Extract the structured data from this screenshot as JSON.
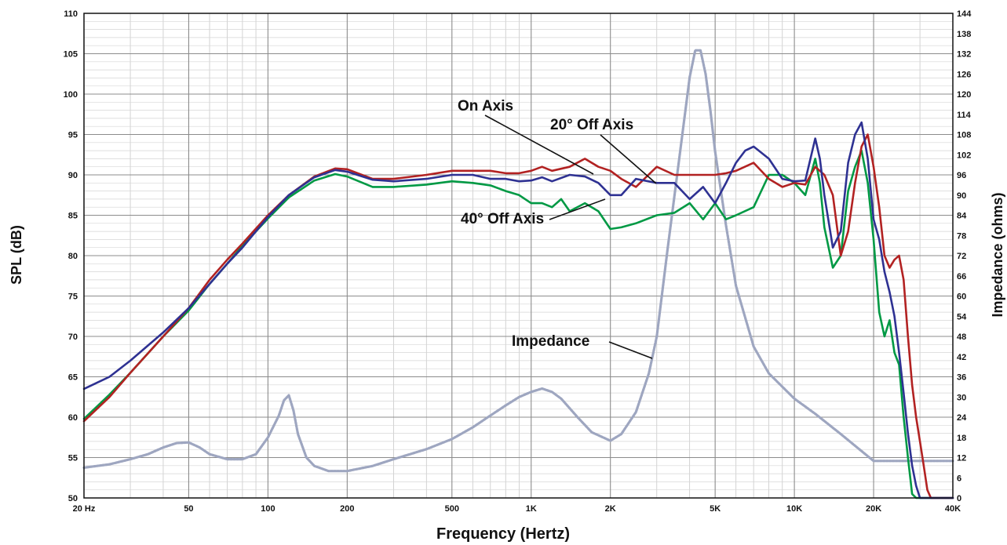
{
  "chart_data": {
    "type": "line",
    "xlabel": "Frequency (Hertz)",
    "ylabel": "SPL (dB)",
    "y2label": "Impedance (ohms)",
    "xscale": "log",
    "xlim": [
      20,
      40000
    ],
    "ylim": [
      50,
      110
    ],
    "y2lim": [
      0,
      144
    ],
    "grid": true,
    "x_ticks": [
      {
        "value": 20,
        "label": "20  Hz"
      },
      {
        "value": 50,
        "label": "50"
      },
      {
        "value": 100,
        "label": "100"
      },
      {
        "value": 200,
        "label": "200"
      },
      {
        "value": 500,
        "label": "500"
      },
      {
        "value": 1000,
        "label": "1K"
      },
      {
        "value": 2000,
        "label": "2K"
      },
      {
        "value": 5000,
        "label": "5K"
      },
      {
        "value": 10000,
        "label": "10K"
      },
      {
        "value": 20000,
        "label": "20K"
      },
      {
        "value": 40000,
        "label": "40K"
      }
    ],
    "y_ticks": [
      50,
      55,
      60,
      65,
      70,
      75,
      80,
      85,
      90,
      95,
      100,
      105,
      110
    ],
    "y2_ticks": [
      0,
      6,
      12,
      18,
      24,
      30,
      36,
      42,
      48,
      54,
      60,
      66,
      72,
      78,
      84,
      90,
      96,
      102,
      108,
      114,
      120,
      126,
      132,
      138,
      144
    ],
    "series": [
      {
        "name": "On Axis",
        "axis": "left",
        "color": "#b22222",
        "x": [
          20,
          25,
          30,
          40,
          50,
          60,
          70,
          80,
          100,
          120,
          150,
          180,
          200,
          250,
          300,
          400,
          500,
          600,
          700,
          800,
          900,
          1000,
          1100,
          1200,
          1400,
          1600,
          1800,
          2000,
          2200,
          2500,
          3000,
          3500,
          4000,
          4500,
          5000,
          5500,
          6000,
          7000,
          8000,
          9000,
          10000,
          11000,
          12000,
          13000,
          14000,
          15000,
          16000,
          17000,
          18000,
          19000,
          20000,
          21000,
          22000,
          23000,
          24000,
          25000,
          26000,
          27000,
          28000,
          29000,
          30000,
          31000,
          32000,
          33000,
          40000
        ],
        "y": [
          59.5,
          62.5,
          65.5,
          70,
          73.5,
          77,
          79.5,
          81.5,
          85,
          87.5,
          89.8,
          90.8,
          90.7,
          89.5,
          89.5,
          90,
          90.5,
          90.5,
          90.5,
          90.2,
          90.2,
          90.5,
          91,
          90.5,
          91,
          92,
          91,
          90.5,
          89.5,
          88.5,
          91,
          90,
          90,
          90,
          90,
          90.2,
          90.5,
          91.5,
          89.5,
          88.5,
          89,
          88.8,
          91,
          90,
          87.5,
          80,
          83,
          89,
          93.5,
          95,
          91,
          86,
          80,
          78.5,
          79.5,
          80,
          77,
          70,
          64,
          60,
          57,
          54,
          51,
          50,
          50
        ]
      },
      {
        "name": "20° Off Axis",
        "axis": "left",
        "color": "#2e3192",
        "x": [
          20,
          25,
          30,
          40,
          50,
          60,
          70,
          80,
          100,
          120,
          150,
          180,
          200,
          250,
          300,
          400,
          500,
          600,
          700,
          800,
          900,
          1000,
          1100,
          1200,
          1400,
          1600,
          1800,
          2000,
          2200,
          2500,
          3000,
          3500,
          4000,
          4500,
          5000,
          5500,
          6000,
          6500,
          7000,
          8000,
          9000,
          10000,
          11000,
          12000,
          12500,
          13000,
          14000,
          15000,
          16000,
          17000,
          18000,
          19000,
          20000,
          21000,
          22000,
          23000,
          24000,
          25000,
          26000,
          27000,
          28000,
          29000,
          30000,
          31000,
          40000
        ],
        "y": [
          63.5,
          65,
          67,
          70.5,
          73.5,
          76.5,
          79,
          81,
          84.8,
          87.5,
          89.7,
          90.6,
          90.4,
          89.4,
          89.2,
          89.5,
          90,
          90,
          89.5,
          89.5,
          89.2,
          89.3,
          89.7,
          89.2,
          90,
          89.8,
          89,
          87.5,
          87.5,
          89.5,
          89,
          89,
          87,
          88.5,
          86.5,
          89,
          91.5,
          93,
          93.5,
          92,
          89.5,
          89.2,
          89.3,
          94.5,
          92,
          87.5,
          81,
          83,
          91.5,
          95,
          96.5,
          92,
          84.5,
          82,
          78,
          75.5,
          72.5,
          68,
          63,
          58,
          54,
          51.5,
          50,
          50,
          50
        ]
      },
      {
        "name": "40° Off Axis",
        "axis": "left",
        "color": "#009944",
        "x": [
          20,
          25,
          30,
          40,
          50,
          60,
          70,
          80,
          100,
          120,
          150,
          180,
          200,
          250,
          300,
          400,
          500,
          600,
          700,
          800,
          900,
          1000,
          1100,
          1200,
          1300,
          1400,
          1600,
          1800,
          2000,
          2200,
          2500,
          3000,
          3500,
          4000,
          4500,
          5000,
          5500,
          6000,
          7000,
          8000,
          9000,
          10000,
          11000,
          12000,
          12500,
          13000,
          14000,
          15000,
          16000,
          17000,
          18000,
          19000,
          20000,
          21000,
          22000,
          23000,
          24000,
          25000,
          26000,
          27000,
          28000,
          29000,
          30000,
          40000
        ],
        "y": [
          59.8,
          62.8,
          65.5,
          70,
          73.2,
          76.5,
          79,
          81.2,
          84.6,
          87.2,
          89.3,
          90.1,
          89.8,
          88.5,
          88.5,
          88.8,
          89.2,
          89,
          88.7,
          88,
          87.5,
          86.5,
          86.5,
          86,
          87,
          85.5,
          86.5,
          85.5,
          83.3,
          83.5,
          84,
          85,
          85.3,
          86.5,
          84.5,
          86.5,
          84.5,
          85,
          86,
          90,
          90,
          89,
          87.5,
          92,
          89,
          83.5,
          78.5,
          80,
          88,
          91,
          93,
          89,
          82,
          73,
          70,
          72,
          68,
          66.5,
          60,
          55,
          50.5,
          50,
          50,
          50
        ]
      },
      {
        "name": "Impedance",
        "axis": "right",
        "color": "#9ea6c0",
        "x": [
          20,
          25,
          30,
          35,
          40,
          45,
          50,
          55,
          60,
          70,
          80,
          90,
          100,
          110,
          115,
          120,
          125,
          130,
          140,
          150,
          170,
          200,
          250,
          300,
          400,
          500,
          600,
          700,
          800,
          900,
          1000,
          1100,
          1200,
          1300,
          1500,
          1700,
          2000,
          2200,
          2500,
          2800,
          3000,
          3300,
          3600,
          4000,
          4200,
          4400,
          4600,
          4800,
          5000,
          5500,
          6000,
          7000,
          8000,
          10000,
          12000,
          15000,
          20000,
          25000,
          30000,
          40000
        ],
        "y": [
          9,
          10,
          11.5,
          13,
          15,
          16.3,
          16.5,
          15,
          13,
          11.5,
          11.5,
          13,
          18,
          24.5,
          29,
          30.5,
          26,
          19,
          12,
          9.5,
          8,
          8,
          9.5,
          11.5,
          14.5,
          17.5,
          21,
          24.5,
          27.5,
          30,
          31.5,
          32.5,
          31.5,
          29.5,
          24,
          19.5,
          17,
          19,
          25.5,
          37,
          48,
          74,
          97,
          125,
          133,
          133,
          126,
          115,
          103,
          81,
          63,
          45,
          37,
          29.5,
          25,
          19,
          11,
          11,
          11,
          11
        ]
      }
    ],
    "annotations": [
      {
        "text": "On Axis"
      },
      {
        "text": "20° Off Axis"
      },
      {
        "text": "40° Off Axis"
      },
      {
        "text": "Impedance"
      }
    ]
  }
}
